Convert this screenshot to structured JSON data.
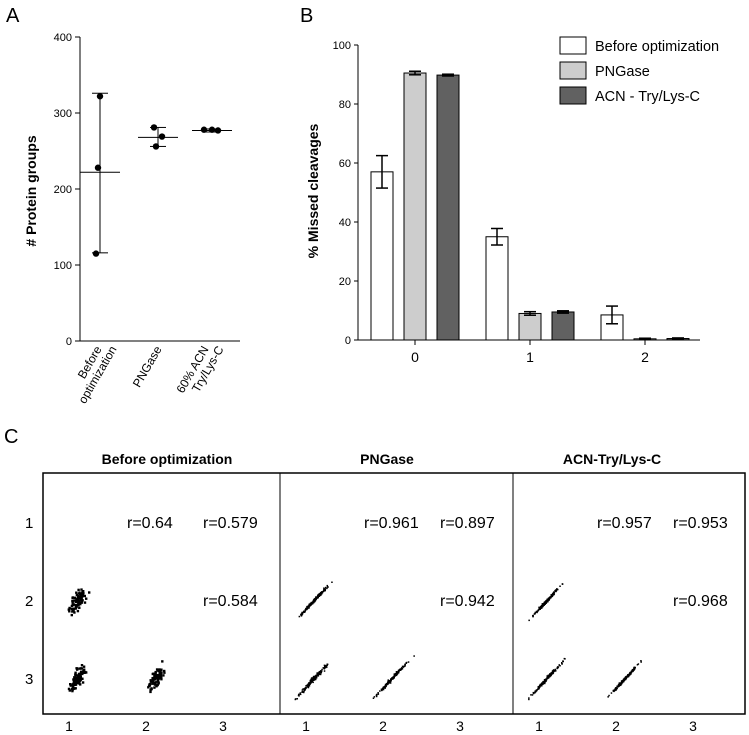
{
  "panel_labels": {
    "a": "A",
    "b": "B",
    "c": "C"
  },
  "chart_data": [
    {
      "panel": "A",
      "type": "scatter",
      "ylabel": "# Protein groups",
      "ylim": [
        0,
        400
      ],
      "yticks": [
        0,
        100,
        200,
        300,
        400
      ],
      "ytick_labels": [
        "0",
        "100",
        "200",
        "300",
        "400"
      ],
      "categories": [
        {
          "line1": "Before",
          "line2": "optimization"
        },
        {
          "line1": "PNGase",
          "line2": ""
        },
        {
          "line1": "60% ACN",
          "line2": "Try/Lys-C"
        }
      ],
      "series": [
        {
          "name": "Before optimization",
          "values": [
            322,
            228,
            115
          ],
          "mean": 222,
          "error": [
            116,
            326
          ]
        },
        {
          "name": "PNGase",
          "values": [
            281,
            269,
            256
          ],
          "mean": 268,
          "error": [
            256,
            281
          ]
        },
        {
          "name": "60% ACN Try/Lys-C",
          "values": [
            278,
            278,
            277
          ],
          "mean": 277,
          "error": [
            275,
            279
          ]
        }
      ]
    },
    {
      "panel": "B",
      "type": "bar",
      "ylabel": "% Missed cleavages",
      "ylim": [
        0,
        100
      ],
      "yticks": [
        0,
        20,
        40,
        60,
        80,
        100
      ],
      "ytick_labels": [
        "0",
        "20",
        "40",
        "60",
        "80",
        "100"
      ],
      "categories": [
        "0",
        "1",
        "2"
      ],
      "legend_position": "top-right",
      "series": [
        {
          "name": "Before optimization",
          "color": "#ffffff",
          "values": [
            57,
            35,
            8.5
          ],
          "errors": [
            5.5,
            2.8,
            3.0
          ]
        },
        {
          "name": "PNGase",
          "color": "#cdcdcd",
          "values": [
            90.5,
            9,
            0.4
          ],
          "errors": [
            0.6,
            0.6,
            0.2
          ]
        },
        {
          "name": "ACN - Try/Lys-C",
          "color": "#616161",
          "values": [
            89.8,
            9.5,
            0.5
          ],
          "errors": [
            0.3,
            0.4,
            0.2
          ]
        }
      ]
    },
    {
      "panel": "C",
      "type": "scatter",
      "subtype": "scatter-matrix",
      "ticks": [
        "1",
        "2",
        "3"
      ],
      "panels": [
        {
          "title": "Before optimization",
          "r": {
            "r12": "r=0.64",
            "r13": "r=0.579",
            "r23": "r=0.584"
          },
          "correlations": [
            0.64,
            0.579,
            0.584
          ]
        },
        {
          "title": "PNGase",
          "r": {
            "r12": "r=0.961",
            "r13": "r=0.897",
            "r23": "r=0.942"
          },
          "correlations": [
            0.961,
            0.897,
            0.942
          ]
        },
        {
          "title": "ACN-Try/Lys-C",
          "r": {
            "r12": "r=0.957",
            "r13": "r=0.953",
            "r23": "r=0.968"
          },
          "correlations": [
            0.957,
            0.953,
            0.968
          ]
        }
      ]
    }
  ]
}
